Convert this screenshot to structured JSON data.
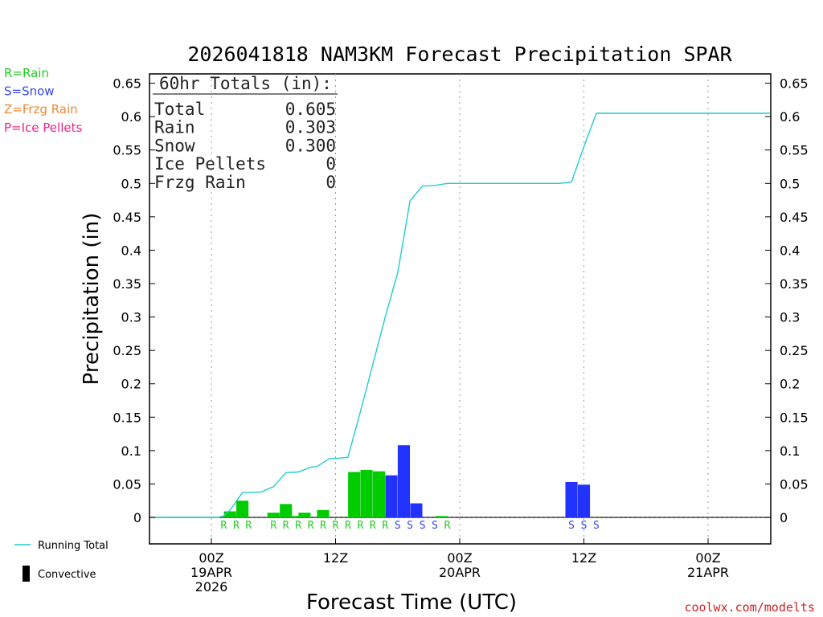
{
  "chart_data": {
    "type": "bar",
    "title": "2026041818 NAM3KM Forecast Precipitation SPAR",
    "xlabel": "Forecast Time (UTC)",
    "ylabel": "Precipitation (in)",
    "ylim": [
      -0.04,
      0.65
    ],
    "xlim_hours": [
      -5,
      45
    ],
    "y_ticks": [
      0.65,
      0.6,
      0.55,
      0.5,
      0.45,
      0.4,
      0.35,
      0.3,
      0.25,
      0.2,
      0.15,
      0.1,
      0.05,
      0
    ],
    "y_tick_labels": [
      "0.65",
      "0.6",
      "0.55",
      "0.5",
      "0.45",
      "0.4",
      "0.35",
      "0.3",
      "0.25",
      "0.2",
      "0.15",
      "0.1",
      "0.05",
      "0"
    ],
    "x_ticks": [
      {
        "hour": 0,
        "lines": [
          "00Z",
          "19APR",
          "2026"
        ]
      },
      {
        "hour": 10,
        "lines": [
          "12Z"
        ]
      },
      {
        "hour": 20,
        "lines": [
          "00Z",
          "20APR"
        ]
      },
      {
        "hour": 30,
        "lines": [
          "12Z"
        ]
      },
      {
        "hour": 40,
        "lines": [
          "00Z",
          "21APR"
        ]
      }
    ],
    "type_legend": [
      {
        "label": "R=Rain",
        "color": "#22cc22"
      },
      {
        "label": "S=Snow",
        "color": "#3344ee"
      },
      {
        "label": "Z=Frzg Rain",
        "color": "#ee8833"
      },
      {
        "label": "P=Ice Pellets",
        "color": "#ee2288"
      }
    ],
    "series_legend": [
      {
        "label": "Running Total",
        "color": "#22cccc",
        "kind": "line"
      },
      {
        "label": "Convective",
        "color": "#000000",
        "kind": "bar"
      }
    ],
    "totals": {
      "header": "60hr Totals (in):",
      "rows": [
        {
          "label": "Total",
          "value": "0.605"
        },
        {
          "label": "Rain",
          "value": "0.303"
        },
        {
          "label": "Snow",
          "value": "0.300"
        },
        {
          "label": "Ice Pellets",
          "value": "0"
        },
        {
          "label": "Frzg Rain",
          "value": "0"
        }
      ]
    },
    "bars": [
      {
        "t": 1.5,
        "value": 0.009,
        "type": "R"
      },
      {
        "t": 2.5,
        "value": 0.025,
        "type": "R"
      },
      {
        "t": 5.0,
        "value": 0.007,
        "type": "R"
      },
      {
        "t": 6.0,
        "value": 0.02,
        "type": "R"
      },
      {
        "t": 7.0,
        "value": 0.002,
        "type": "R"
      },
      {
        "t": 7.5,
        "value": 0.007,
        "type": "R"
      },
      {
        "t": 9.0,
        "value": 0.011,
        "type": "R"
      },
      {
        "t": 11.5,
        "value": 0.068,
        "type": "R"
      },
      {
        "t": 12.5,
        "value": 0.071,
        "type": "R"
      },
      {
        "t": 13.5,
        "value": 0.069,
        "type": "R"
      },
      {
        "t": 14.5,
        "value": 0.063,
        "type": "S"
      },
      {
        "t": 15.5,
        "value": 0.108,
        "type": "S"
      },
      {
        "t": 16.5,
        "value": 0.021,
        "type": "S"
      },
      {
        "t": 18.5,
        "value": 0.002,
        "type": "R"
      },
      {
        "t": 29.0,
        "value": 0.053,
        "type": "S"
      },
      {
        "t": 30.0,
        "value": 0.049,
        "type": "S"
      }
    ],
    "type_markers": [
      {
        "t": 1.0,
        "type": "R"
      },
      {
        "t": 2.0,
        "type": "R"
      },
      {
        "t": 3.0,
        "type": "R"
      },
      {
        "t": 5.0,
        "type": "R"
      },
      {
        "t": 6.0,
        "type": "R"
      },
      {
        "t": 7.0,
        "type": "R"
      },
      {
        "t": 8.0,
        "type": "R"
      },
      {
        "t": 9.0,
        "type": "R"
      },
      {
        "t": 10.0,
        "type": "R"
      },
      {
        "t": 11.0,
        "type": "R"
      },
      {
        "t": 12.0,
        "type": "R"
      },
      {
        "t": 13.0,
        "type": "R"
      },
      {
        "t": 14.0,
        "type": "R"
      },
      {
        "t": 15.0,
        "type": "S"
      },
      {
        "t": 16.0,
        "type": "S"
      },
      {
        "t": 17.0,
        "type": "S"
      },
      {
        "t": 18.0,
        "type": "S"
      },
      {
        "t": 19.0,
        "type": "R"
      },
      {
        "t": 29.0,
        "type": "S"
      },
      {
        "t": 30.0,
        "type": "S"
      },
      {
        "t": 31.0,
        "type": "S"
      }
    ],
    "running_total": [
      [
        -4.5,
        0
      ],
      [
        0.5,
        0
      ],
      [
        1.0,
        0.002
      ],
      [
        1.5,
        0.011
      ],
      [
        2.5,
        0.037
      ],
      [
        4.0,
        0.038
      ],
      [
        5.0,
        0.046
      ],
      [
        6.0,
        0.067
      ],
      [
        7.0,
        0.068
      ],
      [
        8.0,
        0.075
      ],
      [
        8.5,
        0.076
      ],
      [
        9.5,
        0.088
      ],
      [
        10.0,
        0.088
      ],
      [
        11.0,
        0.09
      ],
      [
        12.0,
        0.158
      ],
      [
        13.0,
        0.229
      ],
      [
        14.0,
        0.3
      ],
      [
        15.0,
        0.366
      ],
      [
        16.0,
        0.474
      ],
      [
        17.0,
        0.496
      ],
      [
        18.0,
        0.497
      ],
      [
        19.0,
        0.5
      ],
      [
        28.0,
        0.5
      ],
      [
        29.0,
        0.502
      ],
      [
        30.0,
        0.555
      ],
      [
        31.0,
        0.605
      ],
      [
        45.0,
        0.605
      ]
    ],
    "bar_colors": {
      "R": "#00cc00",
      "S": "#2233ff"
    },
    "marker_colors": {
      "R": "#22cc22",
      "S": "#3344ee"
    },
    "line_color": "#22cccc"
  },
  "credit": "coolwx.com/modelts"
}
